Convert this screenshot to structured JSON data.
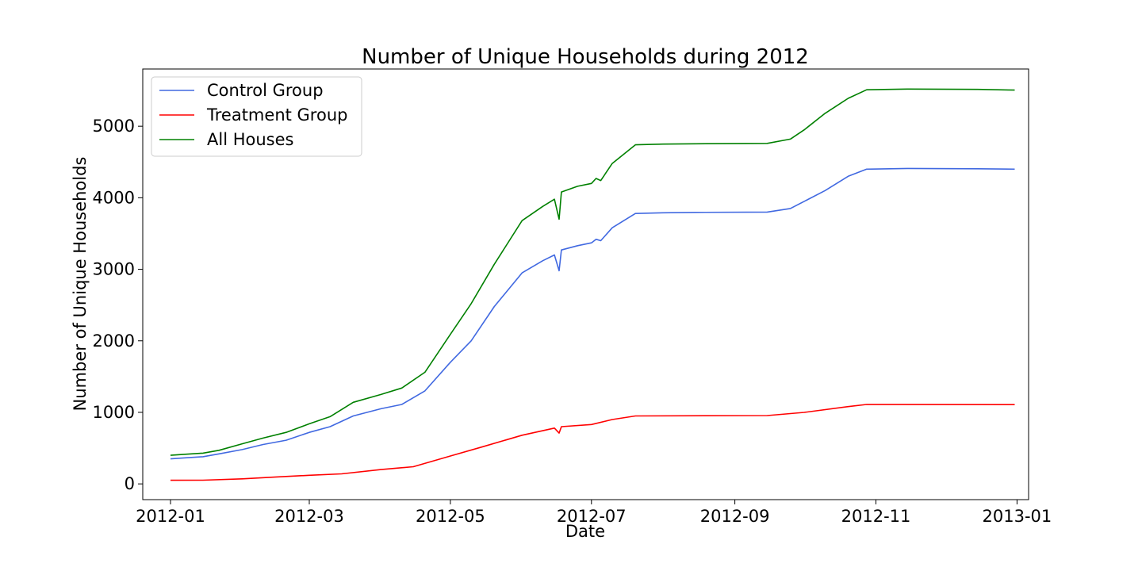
{
  "chart_data": {
    "type": "line",
    "title": "Number of Unique Households during 2012",
    "xlabel": "Date",
    "ylabel": "Number of Unique Households",
    "xlim": [
      "2011-12-20",
      "2013-01-06"
    ],
    "ylim": [
      -220,
      5800
    ],
    "xticks": [
      "2012-01-01",
      "2012-03-01",
      "2012-05-01",
      "2012-07-01",
      "2012-09-01",
      "2012-11-01",
      "2013-01-01"
    ],
    "xtick_labels": [
      "2012-01",
      "2012-03",
      "2012-05",
      "2012-07",
      "2012-09",
      "2012-11",
      "2013-01"
    ],
    "yticks": [
      0,
      1000,
      2000,
      3000,
      4000,
      5000
    ],
    "ytick_labels": [
      "0",
      "1000",
      "2000",
      "3000",
      "4000",
      "5000"
    ],
    "grid": false,
    "legend_position": "top-left",
    "series": [
      {
        "name": "Control Group",
        "color": "#4169e1",
        "points": [
          [
            "2012-01-01",
            350
          ],
          [
            "2012-01-08",
            365
          ],
          [
            "2012-01-15",
            380
          ],
          [
            "2012-01-22",
            420
          ],
          [
            "2012-02-01",
            480
          ],
          [
            "2012-02-10",
            550
          ],
          [
            "2012-02-20",
            610
          ],
          [
            "2012-03-01",
            720
          ],
          [
            "2012-03-10",
            800
          ],
          [
            "2012-03-20",
            950
          ],
          [
            "2012-04-01",
            1050
          ],
          [
            "2012-04-10",
            1110
          ],
          [
            "2012-04-20",
            1300
          ],
          [
            "2012-05-01",
            1700
          ],
          [
            "2012-05-10",
            2000
          ],
          [
            "2012-05-20",
            2480
          ],
          [
            "2012-06-01",
            2950
          ],
          [
            "2012-06-10",
            3120
          ],
          [
            "2012-06-15",
            3200
          ],
          [
            "2012-06-17",
            2980
          ],
          [
            "2012-06-18",
            3270
          ],
          [
            "2012-06-25",
            3330
          ],
          [
            "2012-07-01",
            3370
          ],
          [
            "2012-07-03",
            3420
          ],
          [
            "2012-07-05",
            3400
          ],
          [
            "2012-07-10",
            3580
          ],
          [
            "2012-07-20",
            3780
          ],
          [
            "2012-08-01",
            3790
          ],
          [
            "2012-08-15",
            3795
          ],
          [
            "2012-09-15",
            3800
          ],
          [
            "2012-09-25",
            3850
          ],
          [
            "2012-10-01",
            3950
          ],
          [
            "2012-10-10",
            4100
          ],
          [
            "2012-10-20",
            4300
          ],
          [
            "2012-10-28",
            4400
          ],
          [
            "2012-11-15",
            4410
          ],
          [
            "2012-12-15",
            4405
          ],
          [
            "2012-12-31",
            4400
          ]
        ]
      },
      {
        "name": "Treatment Group",
        "color": "#ff0000",
        "points": [
          [
            "2012-01-01",
            50
          ],
          [
            "2012-01-15",
            52
          ],
          [
            "2012-02-01",
            70
          ],
          [
            "2012-02-15",
            95
          ],
          [
            "2012-03-01",
            120
          ],
          [
            "2012-03-15",
            140
          ],
          [
            "2012-04-01",
            200
          ],
          [
            "2012-04-15",
            240
          ],
          [
            "2012-05-01",
            390
          ],
          [
            "2012-05-15",
            520
          ],
          [
            "2012-06-01",
            680
          ],
          [
            "2012-06-15",
            780
          ],
          [
            "2012-06-17",
            710
          ],
          [
            "2012-06-18",
            800
          ],
          [
            "2012-07-01",
            830
          ],
          [
            "2012-07-10",
            900
          ],
          [
            "2012-07-20",
            950
          ],
          [
            "2012-09-15",
            955
          ],
          [
            "2012-10-01",
            1000
          ],
          [
            "2012-10-20",
            1080
          ],
          [
            "2012-10-28",
            1110
          ],
          [
            "2012-12-31",
            1108
          ]
        ]
      },
      {
        "name": "All Houses",
        "color": "#008000",
        "points": [
          [
            "2012-01-01",
            400
          ],
          [
            "2012-01-08",
            415
          ],
          [
            "2012-01-15",
            430
          ],
          [
            "2012-01-22",
            470
          ],
          [
            "2012-02-01",
            560
          ],
          [
            "2012-02-10",
            640
          ],
          [
            "2012-02-20",
            720
          ],
          [
            "2012-03-01",
            840
          ],
          [
            "2012-03-10",
            940
          ],
          [
            "2012-03-20",
            1140
          ],
          [
            "2012-04-01",
            1250
          ],
          [
            "2012-04-10",
            1340
          ],
          [
            "2012-04-20",
            1560
          ],
          [
            "2012-05-01",
            2090
          ],
          [
            "2012-05-10",
            2520
          ],
          [
            "2012-05-20",
            3070
          ],
          [
            "2012-06-01",
            3680
          ],
          [
            "2012-06-10",
            3880
          ],
          [
            "2012-06-15",
            3980
          ],
          [
            "2012-06-17",
            3700
          ],
          [
            "2012-06-18",
            4080
          ],
          [
            "2012-06-25",
            4160
          ],
          [
            "2012-07-01",
            4200
          ],
          [
            "2012-07-03",
            4270
          ],
          [
            "2012-07-05",
            4240
          ],
          [
            "2012-07-10",
            4480
          ],
          [
            "2012-07-20",
            4740
          ],
          [
            "2012-08-01",
            4750
          ],
          [
            "2012-08-15",
            4755
          ],
          [
            "2012-09-15",
            4760
          ],
          [
            "2012-09-25",
            4820
          ],
          [
            "2012-10-01",
            4950
          ],
          [
            "2012-10-10",
            5180
          ],
          [
            "2012-10-20",
            5390
          ],
          [
            "2012-10-28",
            5510
          ],
          [
            "2012-11-15",
            5520
          ],
          [
            "2012-12-15",
            5515
          ],
          [
            "2012-12-31",
            5505
          ]
        ]
      }
    ]
  }
}
